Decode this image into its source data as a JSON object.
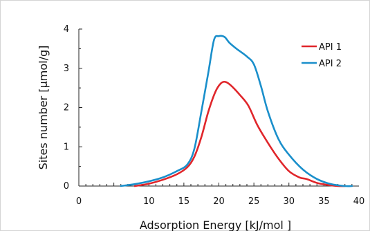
{
  "chart_data": {
    "type": "line",
    "xlabel": "Adsorption Energy [kJ/mol ]",
    "ylabel": "Sites number [µmol/g]",
    "xlim": [
      0,
      40
    ],
    "ylim": [
      0,
      4
    ],
    "xticks": [
      "0",
      "10",
      "15",
      "20",
      "25",
      "30",
      "35",
      "40"
    ],
    "xtick_values": [
      0,
      10,
      15,
      20,
      25,
      30,
      35,
      40
    ],
    "yticks": [
      "0",
      "1",
      "2",
      "3",
      "4"
    ],
    "ytick_values": [
      0,
      1,
      2,
      3,
      4
    ],
    "grid": false,
    "legend_position": "top-right",
    "series": [
      {
        "name": "API 1",
        "color": "#e0262b",
        "x": [
          8.0,
          10.0,
          12.0,
          14.0,
          15.5,
          16.5,
          17.5,
          18.5,
          19.5,
          20.3,
          21.0,
          21.8,
          23.0,
          24.2,
          25.5,
          27.0,
          28.5,
          30.0,
          31.5,
          32.5,
          34.0,
          35.5,
          37.0,
          38.0
        ],
        "y": [
          0.0,
          0.06,
          0.16,
          0.3,
          0.48,
          0.75,
          1.25,
          1.9,
          2.4,
          2.62,
          2.65,
          2.55,
          2.32,
          2.05,
          1.55,
          1.1,
          0.7,
          0.38,
          0.22,
          0.18,
          0.08,
          0.03,
          0.0,
          0.0
        ]
      },
      {
        "name": "API 2",
        "color": "#1a8fcb",
        "x": [
          6.0,
          8.0,
          10.0,
          12.0,
          14.0,
          15.5,
          16.5,
          17.5,
          18.5,
          19.3,
          20.0,
          20.8,
          21.5,
          22.5,
          24.0,
          25.0,
          26.0,
          27.0,
          28.5,
          30.0,
          32.0,
          34.0,
          36.0,
          38.0,
          39.0
        ],
        "y": [
          0.0,
          0.05,
          0.12,
          0.22,
          0.38,
          0.55,
          0.95,
          1.9,
          2.9,
          3.72,
          3.82,
          3.8,
          3.65,
          3.5,
          3.3,
          3.1,
          2.55,
          1.9,
          1.2,
          0.8,
          0.42,
          0.18,
          0.05,
          0.0,
          0.0
        ]
      }
    ]
  }
}
